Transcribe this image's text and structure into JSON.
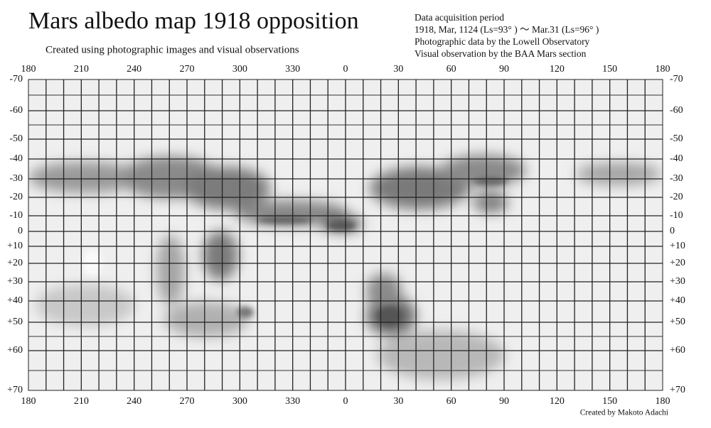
{
  "header": {
    "title": "Mars albedo map 1918 opposition",
    "subtitle": "Created using photographic images and visual observations"
  },
  "info": {
    "lines": [
      "Data acquisition period",
      "1918, Mar, 1124 (Ls=93°  )  ～    Mar.31 (Ls=96°  )",
      "Photographic data by the Lowell Observatory",
      "Visual observation by the BAA Mars section"
    ]
  },
  "map": {
    "longitudes": [
      "180",
      "210",
      "240",
      "270",
      "300",
      "330",
      "0",
      "30",
      "60",
      "90",
      "120",
      "150",
      "180"
    ],
    "latitudes": [
      "-70",
      "-60",
      "-50",
      "-40",
      "-30",
      "-20",
      "-10",
      "0",
      "+10",
      "+20",
      "+30",
      "+40",
      "+50",
      "+60",
      "+70"
    ]
  },
  "credit": "Created by Makoto Adachi"
}
